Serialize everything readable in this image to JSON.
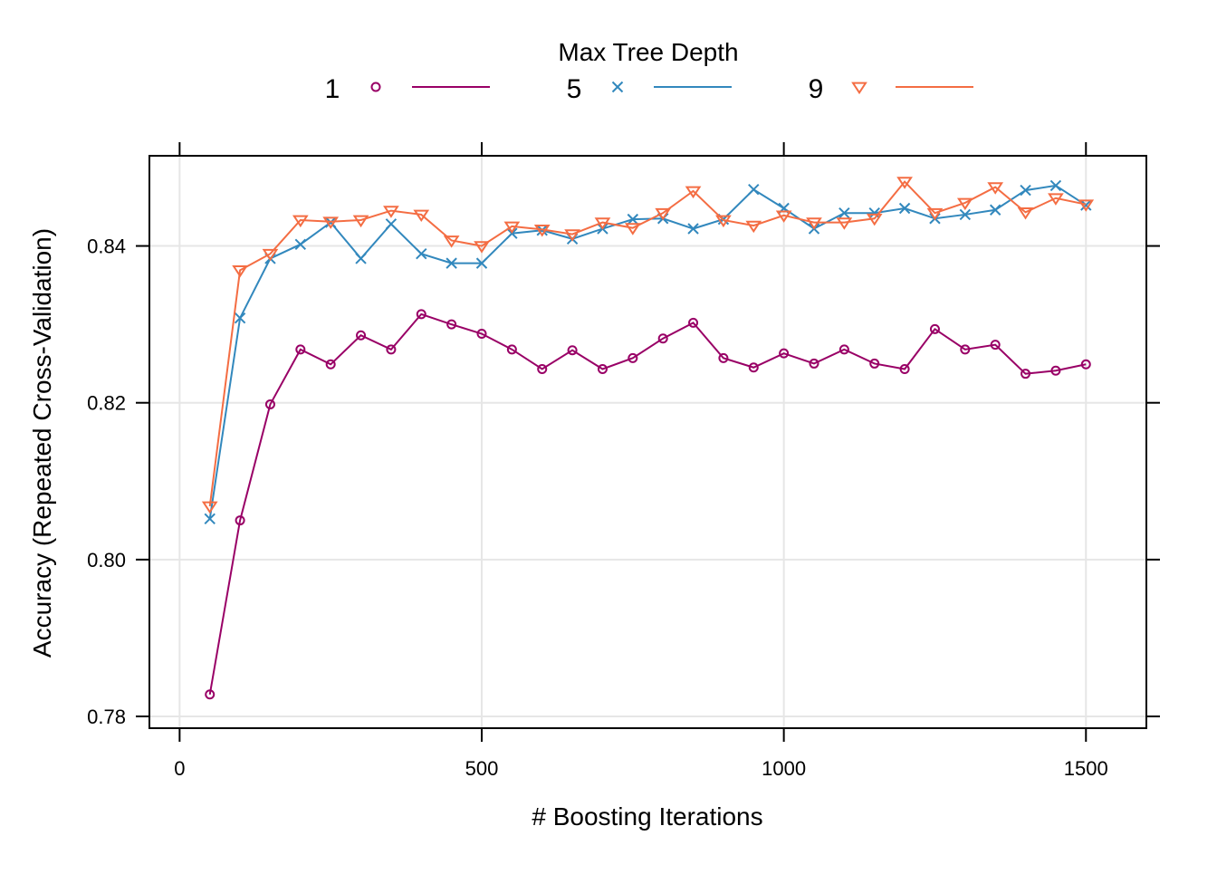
{
  "chart_data": {
    "type": "line",
    "title": "",
    "xlabel": "# Boosting Iterations",
    "ylabel": "Accuracy (Repeated Cross-Validation)",
    "legend_title": "Max Tree Depth",
    "legend_position": "top",
    "grid": true,
    "xlim": [
      -50,
      1600
    ],
    "ylim": [
      0.7785,
      0.8515
    ],
    "xticks": [
      0,
      500,
      1000,
      1500
    ],
    "xtick_labels": [
      "0",
      "500",
      "1000",
      "1500"
    ],
    "yticks": [
      0.78,
      0.8,
      0.82,
      0.84
    ],
    "ytick_labels": [
      "0.78",
      "0.80",
      "0.82",
      "0.84"
    ],
    "x": [
      50,
      100,
      150,
      200,
      250,
      300,
      350,
      400,
      450,
      500,
      550,
      600,
      650,
      700,
      750,
      800,
      850,
      900,
      950,
      1000,
      1050,
      1100,
      1150,
      1200,
      1250,
      1300,
      1350,
      1400,
      1450,
      1500
    ],
    "series": [
      {
        "name": "1",
        "color": "#990066",
        "marker": "circle",
        "values": [
          0.7828,
          0.805,
          0.8198,
          0.8268,
          0.8249,
          0.8286,
          0.8268,
          0.8313,
          0.83,
          0.8288,
          0.8268,
          0.8243,
          0.8267,
          0.8243,
          0.8257,
          0.8282,
          0.8302,
          0.8257,
          0.8245,
          0.8263,
          0.825,
          0.8268,
          0.825,
          0.8243,
          0.8294,
          0.8268,
          0.8274,
          0.8237,
          0.8241,
          0.8249
        ]
      },
      {
        "name": "5",
        "color": "#3288BD",
        "marker": "cross",
        "values": [
          0.8052,
          0.8308,
          0.8384,
          0.8402,
          0.843,
          0.8384,
          0.8428,
          0.839,
          0.8378,
          0.8378,
          0.8416,
          0.842,
          0.8409,
          0.8422,
          0.8434,
          0.8435,
          0.8422,
          0.8434,
          0.8472,
          0.8448,
          0.8422,
          0.8442,
          0.8442,
          0.8448,
          0.8435,
          0.844,
          0.8446,
          0.8471,
          0.8477,
          0.8452
        ]
      },
      {
        "name": "9",
        "color": "#F46D43",
        "marker": "triangle-down",
        "values": [
          0.8068,
          0.8369,
          0.839,
          0.8433,
          0.8431,
          0.8433,
          0.8445,
          0.844,
          0.8407,
          0.84,
          0.8425,
          0.8421,
          0.8415,
          0.843,
          0.8423,
          0.8442,
          0.847,
          0.8433,
          0.8426,
          0.8439,
          0.843,
          0.843,
          0.8435,
          0.8482,
          0.8442,
          0.8455,
          0.8475,
          0.8443,
          0.8461,
          0.8453
        ]
      }
    ]
  }
}
